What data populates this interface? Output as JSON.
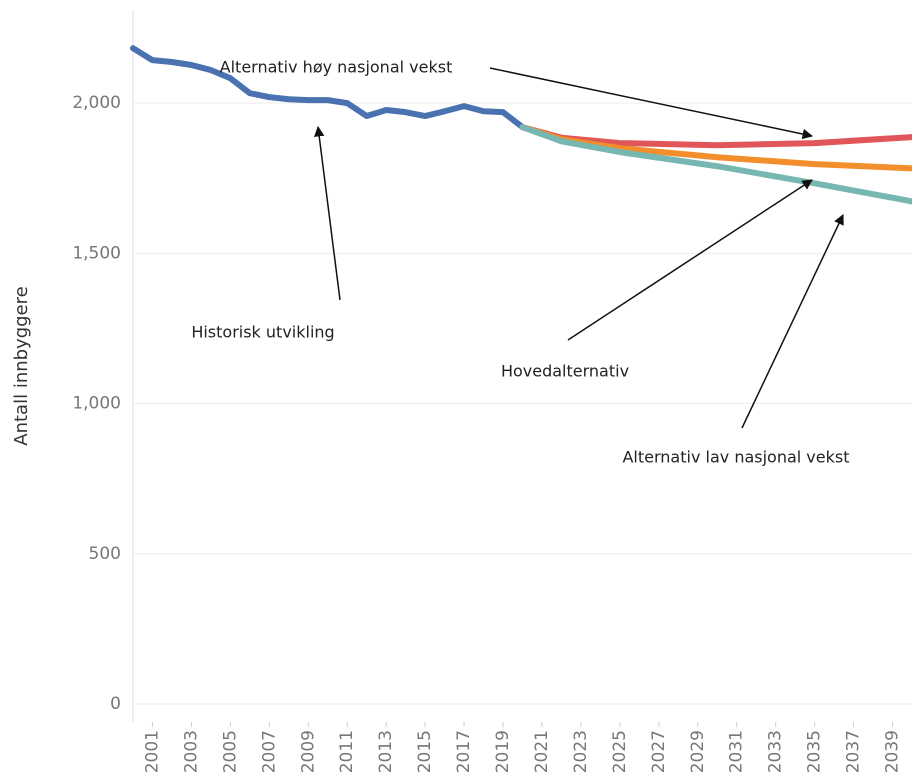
{
  "chart_data": {
    "type": "line",
    "y_label": "Antall innbyggere",
    "xlim": [
      2000,
      2040
    ],
    "xticks": [
      2001,
      2003,
      2005,
      2007,
      2009,
      2011,
      2013,
      2015,
      2017,
      2019,
      2021,
      2023,
      2025,
      2027,
      2029,
      2031,
      2033,
      2035,
      2037,
      2039
    ],
    "ylim": [
      -60,
      2310
    ],
    "yticks": [
      0,
      500,
      {
        "value": 1000,
        "label": "1,000"
      },
      {
        "value": 1500,
        "label": "1,500"
      },
      {
        "value": 2000,
        "label": "2,000"
      }
    ],
    "grid": true,
    "series": [
      {
        "color": "#4a72b0",
        "x": [
          2000,
          2001,
          2002,
          2003,
          2004,
          2005,
          2006,
          2007,
          2008,
          2009,
          2010,
          2011,
          2012,
          2013,
          2014,
          2015,
          2016,
          2017,
          2018,
          2019,
          2020
        ],
        "values": [
          2183,
          2143,
          2137,
          2127,
          2110,
          2083,
          2033,
          2020,
          2013,
          2010,
          2010,
          2000,
          1957,
          1977,
          1970,
          1957,
          1973,
          1990,
          1973,
          1970,
          1920
        ]
      },
      {
        "color": "#e15759",
        "x": [
          2020,
          2022,
          2025,
          2030,
          2035,
          2040
        ],
        "values": [
          1920,
          1885,
          1867,
          1860,
          1867,
          1887
        ]
      },
      {
        "color": "#f28e2b",
        "x": [
          2020,
          2022,
          2025,
          2030,
          2035,
          2040
        ],
        "values": [
          1920,
          1880,
          1850,
          1820,
          1797,
          1783
        ]
      },
      {
        "color": "#76b7b2",
        "x": [
          2020,
          2022,
          2025,
          2030,
          2035,
          2040
        ],
        "values": [
          1920,
          1873,
          1837,
          1790,
          1733,
          1673
        ]
      }
    ],
    "annotations": [
      "Alternativ høy nasjonal vekst",
      "Historisk utvikling",
      "Hovedalternativ",
      "Alternativ lav nasjonal vekst"
    ]
  }
}
